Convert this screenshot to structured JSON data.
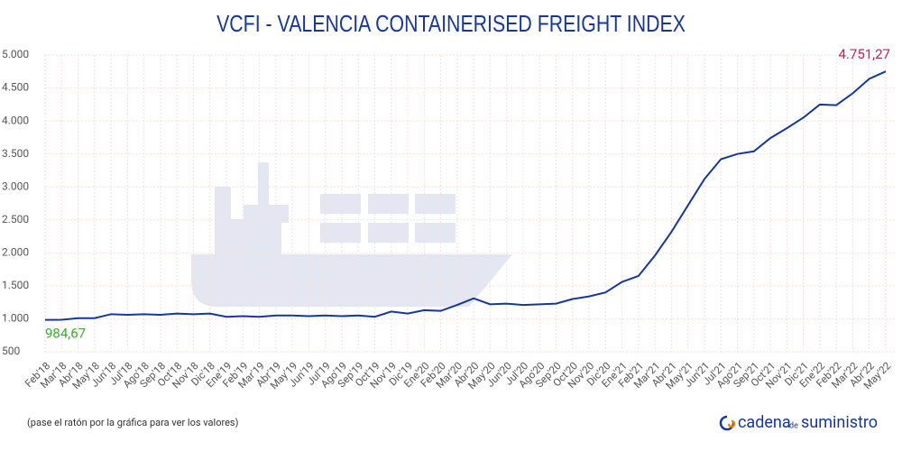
{
  "chart_data": {
    "type": "line",
    "title": "VCFI - VALENCIA CONTAINERISED FREIGHT INDEX",
    "categories": [
      "Feb'18",
      "Mar'18",
      "Abr'18",
      "May'18",
      "Jun'18",
      "Jul'18",
      "Ago'18",
      "Sep'18",
      "Oct'18",
      "Nov'18",
      "Dic'18",
      "Ene'19",
      "Feb'19",
      "Mar'19",
      "Abr'19",
      "May'19",
      "Jun'19",
      "Jul'19",
      "Ago'19",
      "Sep'19",
      "Oct'19",
      "Nov'19",
      "Dic'19",
      "Ene'20",
      "Feb'20",
      "Mar'20",
      "Abr'20",
      "May'20",
      "Jun'20",
      "Jul'20",
      "Ago'20",
      "Sep'20",
      "Oct'20",
      "Nov'20",
      "Dic'20",
      "Ene'21",
      "Feb'21",
      "Mar'21",
      "Abr'21",
      "May'21",
      "Jun'21",
      "Jul'21",
      "Ago'21",
      "Sep'21",
      "Oct'21",
      "Nov'21",
      "Dic'21",
      "Ene'22",
      "Feb'22",
      "Mar'22",
      "Abr'22",
      "May'22"
    ],
    "series": [
      {
        "name": "VCFI",
        "color": "#17379a",
        "values": [
          984.67,
          985,
          1010,
          1010,
          1070,
          1060,
          1070,
          1060,
          1080,
          1070,
          1080,
          1030,
          1040,
          1030,
          1050,
          1050,
          1040,
          1050,
          1040,
          1050,
          1030,
          1110,
          1080,
          1130,
          1120,
          1210,
          1310,
          1220,
          1230,
          1210,
          1220,
          1230,
          1300,
          1340,
          1400,
          1560,
          1650,
          1960,
          2320,
          2720,
          3120,
          3420,
          3500,
          3540,
          3740,
          3890,
          4050,
          4250,
          4240,
          4420,
          4640,
          4751.27
        ],
        "value_labels": [
          "984,67",
          null,
          null,
          null,
          null,
          null,
          null,
          null,
          null,
          null,
          null,
          null,
          null,
          null,
          null,
          null,
          null,
          null,
          null,
          null,
          null,
          null,
          null,
          null,
          null,
          null,
          null,
          null,
          null,
          null,
          null,
          null,
          null,
          null,
          null,
          null,
          null,
          null,
          null,
          null,
          null,
          null,
          null,
          null,
          null,
          null,
          null,
          null,
          null,
          null,
          null,
          "4.751,27"
        ],
        "label_colors": [
          "#3aaa35",
          "#c0224d"
        ]
      }
    ],
    "ylim": [
      500,
      5000
    ],
    "yticks": [
      500,
      {
        "value": 1000,
        "label": "1.000"
      },
      {
        "value": 1500,
        "label": "1.500"
      },
      {
        "value": 2000,
        "label": "2.000"
      },
      {
        "value": 2500,
        "label": "2.500"
      },
      {
        "value": 3000,
        "label": "3.000"
      },
      {
        "value": 3500,
        "label": "3.500"
      },
      {
        "value": 4000,
        "label": "4.000"
      },
      {
        "value": 4500,
        "label": "4.500"
      },
      {
        "value": 5000,
        "label": "5.000"
      }
    ],
    "grid": true,
    "note": "(pase el ratón por la gráfica para ver los valores)",
    "branding": {
      "name": "cadena",
      "small": "de",
      "rest": "suministro"
    }
  }
}
